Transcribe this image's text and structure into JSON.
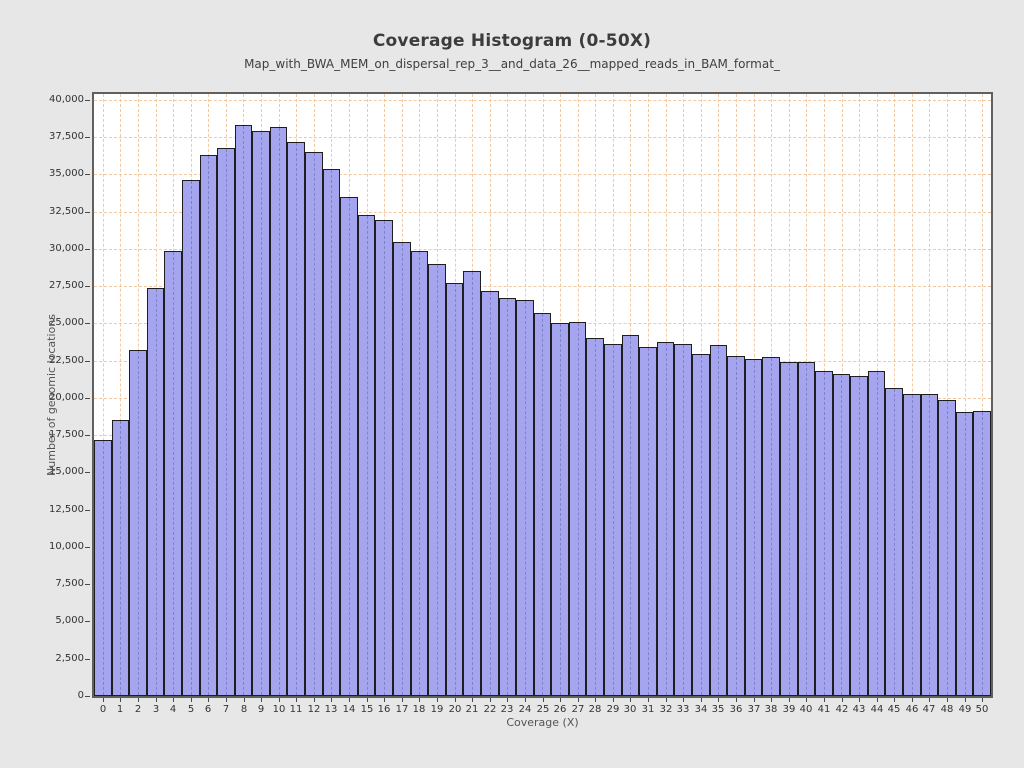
{
  "header": {
    "title": "Coverage Histogram (0-50X)",
    "subtitle": "Map_with_BWA_MEM_on_dispersal_rep_3__and_data_26__mapped_reads_in_BAM_format_"
  },
  "chart_data": {
    "type": "bar",
    "title": "Coverage Histogram (0-50X)",
    "subtitle": "Map_with_BWA_MEM_on_dispersal_rep_3__and_data_26__mapped_reads_in_BAM_format_",
    "xlabel": "Coverage (X)",
    "ylabel": "Number of genomic locations",
    "categories": [
      0,
      1,
      2,
      3,
      4,
      5,
      6,
      7,
      8,
      9,
      10,
      11,
      12,
      13,
      14,
      15,
      16,
      17,
      18,
      19,
      20,
      21,
      22,
      23,
      24,
      25,
      26,
      27,
      28,
      29,
      30,
      31,
      32,
      33,
      34,
      35,
      36,
      37,
      38,
      39,
      40,
      41,
      42,
      43,
      44,
      45,
      46,
      47,
      48,
      49,
      50
    ],
    "values": [
      17200,
      18550,
      23200,
      27400,
      29850,
      34650,
      36300,
      36800,
      38300,
      37950,
      38200,
      37150,
      36500,
      35350,
      33500,
      32300,
      31950,
      30450,
      29850,
      29000,
      27700,
      28550,
      27150,
      26700,
      26600,
      25700,
      25000,
      25100,
      24050,
      23650,
      24250,
      23400,
      23750,
      23600,
      22950,
      23550,
      22800,
      22600,
      22750,
      22400,
      22400,
      21800,
      21600,
      21500,
      21800,
      20650,
      20250,
      20250,
      19850,
      19050,
      19100
    ],
    "ylim": [
      0,
      40000
    ],
    "ytick_step": 2500,
    "yticks": [
      0,
      2500,
      5000,
      7500,
      10000,
      12500,
      15000,
      17500,
      20000,
      22500,
      25000,
      27500,
      30000,
      32500,
      35000,
      37500,
      40000
    ],
    "grid": true,
    "legend": "none",
    "colors": {
      "page_background": "#e7e7e7",
      "plot_background": "#ffffff",
      "plot_border": "#606060",
      "gridline": "#f3c9a3",
      "bar_fill": "#a4a4ef",
      "bar_border": "#1e1e1e",
      "title_text": "#3c3c3c",
      "axis_text": "#333333"
    }
  }
}
